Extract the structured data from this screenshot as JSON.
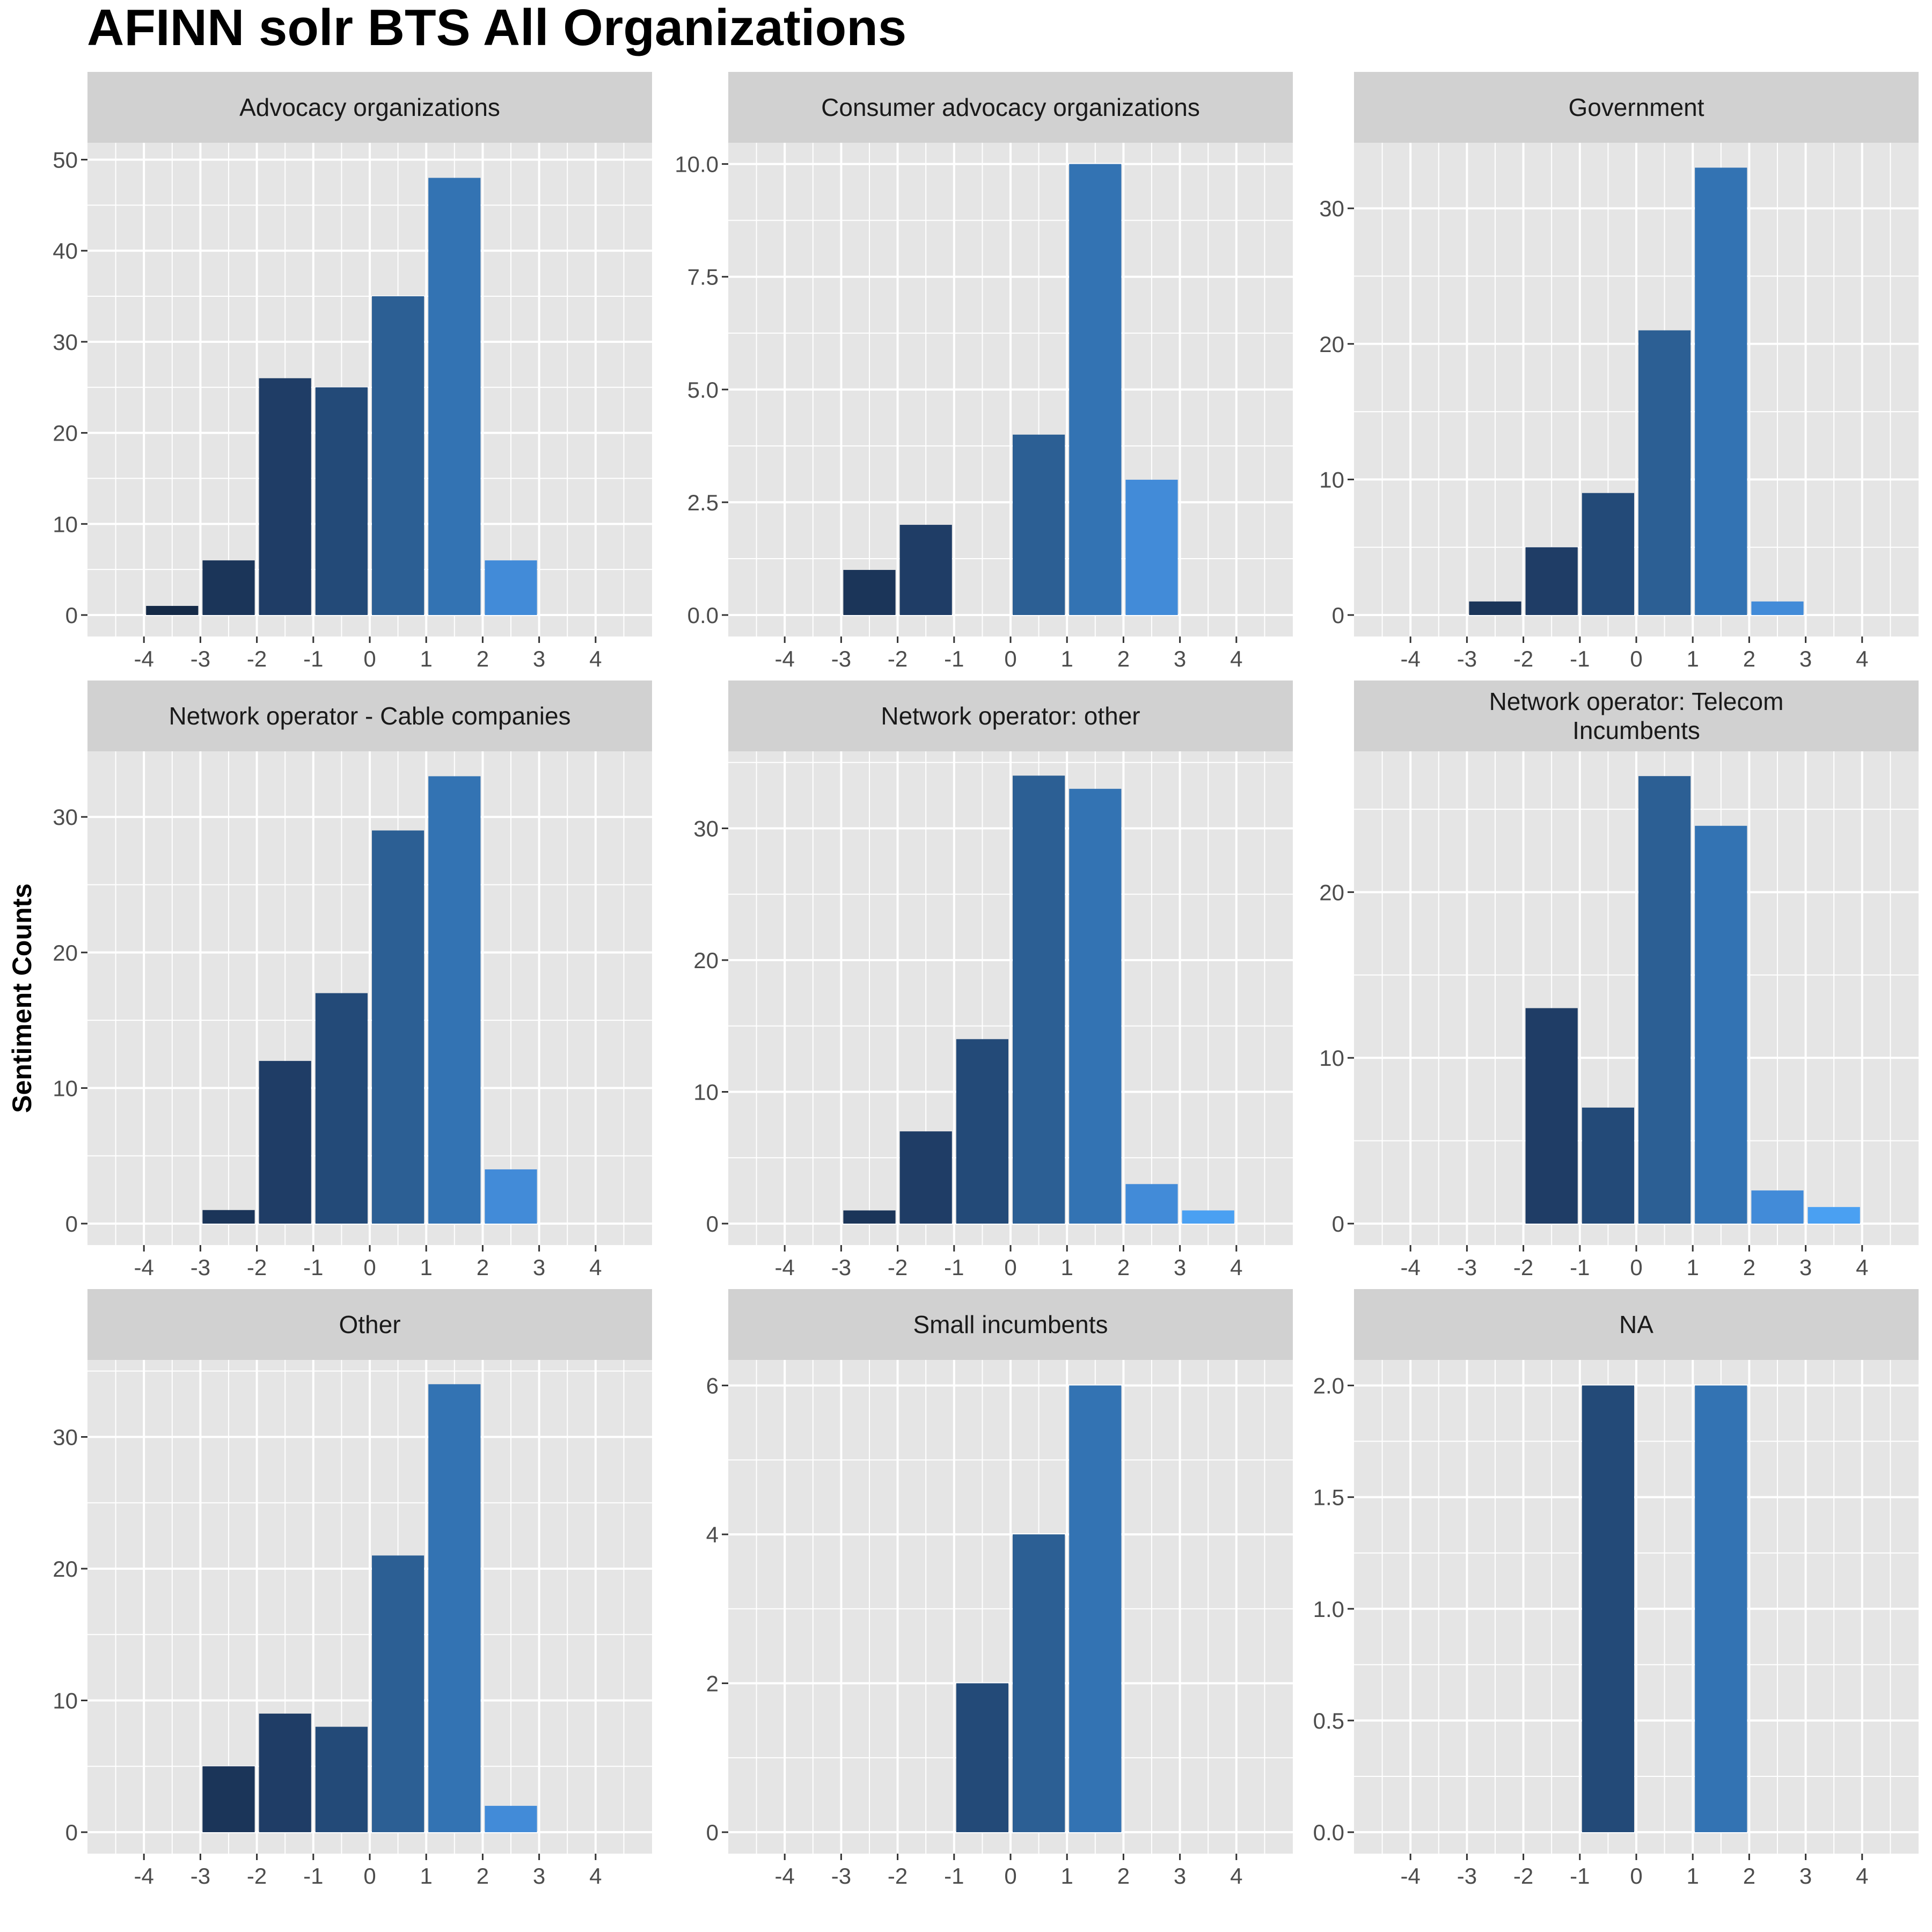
{
  "chart_data": {
    "type": "bar",
    "title": "AFINN solr BTS All Organizations",
    "xlabel": "",
    "ylabel": "Sentiment Counts",
    "x_ticks": [
      "-4",
      "-3",
      "-2",
      "-1",
      "0",
      "1",
      "2",
      "3",
      "4"
    ],
    "xlim": [
      -5,
      5
    ],
    "grid": true,
    "legend": "none",
    "colors": {
      "panel_bg": "#E5E5E5",
      "strip_bg": "#D1D1D1",
      "grid": "#FFFFFF",
      "bar_colors": {
        "-3": "#152A47",
        "-2": "#1B3559",
        "-1": "#1F3D66",
        "0": "#234A78",
        "1": "#2C5F94",
        "2": "#3373B3",
        "3": "#428BD8",
        "4": "#4AA0F2"
      }
    },
    "facets": [
      {
        "title_lines": [
          "Advocacy organizations"
        ],
        "ylim": [
          0,
          51.5
        ],
        "y_ticks": [
          "0",
          "10",
          "20",
          "30",
          "40",
          "50"
        ],
        "y_values": [
          0,
          10,
          20,
          30,
          40,
          50
        ],
        "bars": [
          {
            "x": -3,
            "value": 1
          },
          {
            "x": -2,
            "value": 6
          },
          {
            "x": -1,
            "value": 26
          },
          {
            "x": 0,
            "value": 25
          },
          {
            "x": 1,
            "value": 35
          },
          {
            "x": 2,
            "value": 48
          },
          {
            "x": 3,
            "value": 6
          }
        ]
      },
      {
        "title_lines": [
          "Consumer advocacy organizations"
        ],
        "ylim": [
          0,
          10.4
        ],
        "y_ticks": [
          "0.0",
          "2.5",
          "5.0",
          "7.5",
          "10.0"
        ],
        "y_values": [
          0,
          2.5,
          5,
          7.5,
          10
        ],
        "bars": [
          {
            "x": -2,
            "value": 1
          },
          {
            "x": -1,
            "value": 2
          },
          {
            "x": 1,
            "value": 4
          },
          {
            "x": 2,
            "value": 10
          },
          {
            "x": 3,
            "value": 3
          }
        ]
      },
      {
        "title_lines": [
          "Government"
        ],
        "ylim": [
          0,
          34.6
        ],
        "y_ticks": [
          "0",
          "10",
          "20",
          "30"
        ],
        "y_values": [
          0,
          10,
          20,
          30
        ],
        "bars": [
          {
            "x": -2,
            "value": 1
          },
          {
            "x": -1,
            "value": 5
          },
          {
            "x": 0,
            "value": 9
          },
          {
            "x": 1,
            "value": 21
          },
          {
            "x": 2,
            "value": 33
          },
          {
            "x": 3,
            "value": 1
          }
        ]
      },
      {
        "title_lines": [
          "Network operator - Cable companies"
        ],
        "ylim": [
          0,
          34.6
        ],
        "y_ticks": [
          "0",
          "10",
          "20",
          "30"
        ],
        "y_values": [
          0,
          10,
          20,
          30
        ],
        "bars": [
          {
            "x": -2,
            "value": 1
          },
          {
            "x": -1,
            "value": 12
          },
          {
            "x": 0,
            "value": 17
          },
          {
            "x": 1,
            "value": 29
          },
          {
            "x": 2,
            "value": 33
          },
          {
            "x": 3,
            "value": 4
          }
        ]
      },
      {
        "title_lines": [
          "Network operator: other"
        ],
        "ylim": [
          0,
          35.6
        ],
        "y_ticks": [
          "0",
          "10",
          "20",
          "30"
        ],
        "y_values": [
          0,
          10,
          20,
          30
        ],
        "bars": [
          {
            "x": -2,
            "value": 1
          },
          {
            "x": -1,
            "value": 7
          },
          {
            "x": 0,
            "value": 14
          },
          {
            "x": 1,
            "value": 34
          },
          {
            "x": 2,
            "value": 33
          },
          {
            "x": 3,
            "value": 3
          },
          {
            "x": 4,
            "value": 1
          }
        ]
      },
      {
        "title_lines": [
          "Network operator: Telecom",
          "Incumbents"
        ],
        "ylim": [
          0,
          28.3
        ],
        "y_ticks": [
          "0",
          "10",
          "20"
        ],
        "y_values": [
          0,
          10,
          20
        ],
        "bars": [
          {
            "x": -1,
            "value": 13
          },
          {
            "x": 0,
            "value": 7
          },
          {
            "x": 1,
            "value": 27
          },
          {
            "x": 2,
            "value": 24
          },
          {
            "x": 3,
            "value": 2
          },
          {
            "x": 4,
            "value": 1
          }
        ]
      },
      {
        "title_lines": [
          "Other"
        ],
        "ylim": [
          0,
          35.6
        ],
        "y_ticks": [
          "0",
          "10",
          "20",
          "30"
        ],
        "y_values": [
          0,
          10,
          20,
          30
        ],
        "bars": [
          {
            "x": -2,
            "value": 5
          },
          {
            "x": -1,
            "value": 9
          },
          {
            "x": 0,
            "value": 8
          },
          {
            "x": 1,
            "value": 21
          },
          {
            "x": 2,
            "value": 34
          },
          {
            "x": 3,
            "value": 2
          }
        ]
      },
      {
        "title_lines": [
          "Small incumbents"
        ],
        "ylim": [
          0,
          6.3
        ],
        "y_ticks": [
          "0",
          "2",
          "4",
          "6"
        ],
        "y_values": [
          0,
          2,
          4,
          6
        ],
        "bars": [
          {
            "x": 0,
            "value": 2
          },
          {
            "x": 1,
            "value": 4
          },
          {
            "x": 2,
            "value": 6
          }
        ]
      },
      {
        "title_lines": [
          "NA"
        ],
        "ylim": [
          0,
          2.1
        ],
        "y_ticks": [
          "0.0",
          "0.5",
          "1.0",
          "1.5",
          "2.0"
        ],
        "y_values": [
          0,
          0.5,
          1,
          1.5,
          2
        ],
        "bars": [
          {
            "x": 0,
            "value": 2
          },
          {
            "x": 2,
            "value": 2
          }
        ]
      }
    ]
  }
}
